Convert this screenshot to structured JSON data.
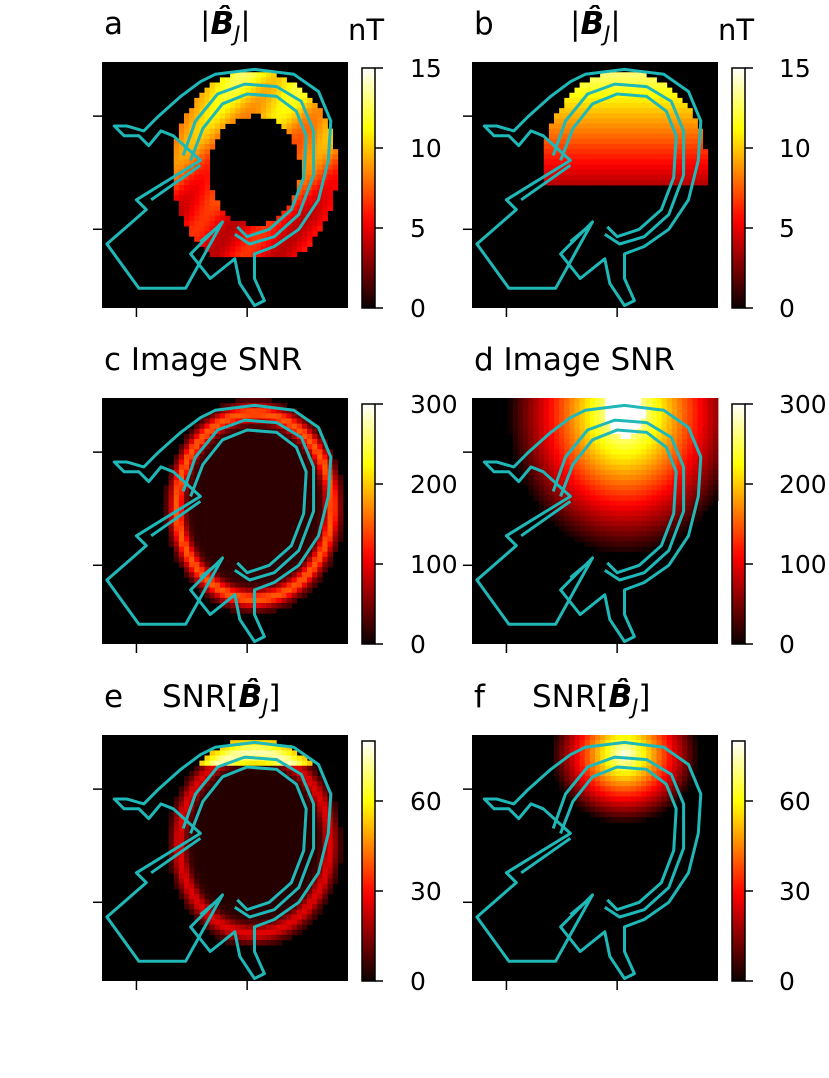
{
  "figure": {
    "colors": {
      "outline": "#1fb8b8",
      "background": "#000000"
    },
    "colormap": "hot"
  },
  "chart_data": [
    {
      "type": "heatmap",
      "panel_letter": "a",
      "title": "|B̂J|",
      "title_parts": {
        "open": "|",
        "symbol": "B̂",
        "subscript": "J",
        "close": "|"
      },
      "colorbar": {
        "label": "nT",
        "min": 0,
        "max": 15,
        "ticks": [
          0,
          5,
          10,
          15
        ],
        "tick_labels": [
          "0",
          "5",
          "10",
          "15"
        ]
      },
      "field": {
        "pattern": "ring",
        "peak": 13
      }
    },
    {
      "type": "heatmap",
      "panel_letter": "b",
      "title": "|B̂J|",
      "title_parts": {
        "open": "|",
        "symbol": "B̂",
        "subscript": "J",
        "close": "|"
      },
      "colorbar": {
        "label": "nT",
        "min": 0,
        "max": 15,
        "ticks": [
          0,
          5,
          10,
          15
        ],
        "tick_labels": [
          "0",
          "5",
          "10",
          "15"
        ]
      },
      "field": {
        "pattern": "top",
        "peak": 14
      }
    },
    {
      "type": "heatmap",
      "panel_letter": "c",
      "title": "Image SNR",
      "colorbar": {
        "label": "",
        "min": 0,
        "max": 300,
        "ticks": [
          0,
          100,
          200,
          300
        ],
        "tick_labels": [
          "0",
          "100",
          "200",
          "300"
        ]
      },
      "field": {
        "pattern": "edge",
        "peak": 150
      }
    },
    {
      "type": "heatmap",
      "panel_letter": "d",
      "title": "Image SNR",
      "colorbar": {
        "label": "",
        "min": 0,
        "max": 300,
        "ticks": [
          0,
          100,
          200,
          300
        ],
        "tick_labels": [
          "0",
          "100",
          "200",
          "300"
        ]
      },
      "field": {
        "pattern": "coil",
        "peak": 300
      }
    },
    {
      "type": "heatmap",
      "panel_letter": "e",
      "title": "SNR[B̂J]",
      "title_parts": {
        "prefix": "SNR",
        "open": "[",
        "symbol": "B̂",
        "subscript": "J",
        "close": "]"
      },
      "colorbar": {
        "label": "",
        "min": 0,
        "max": 80,
        "ticks": [
          0,
          30,
          60
        ],
        "tick_labels": [
          "0",
          "30",
          "60"
        ]
      },
      "field": {
        "pattern": "edgefaint",
        "peak": 70
      }
    },
    {
      "type": "heatmap",
      "panel_letter": "f",
      "title": "SNR[B̂J]",
      "title_parts": {
        "prefix": "SNR",
        "open": "[",
        "symbol": "B̂",
        "subscript": "J",
        "close": "]"
      },
      "colorbar": {
        "label": "",
        "min": 0,
        "max": 80,
        "ticks": [
          0,
          30,
          60
        ],
        "tick_labels": [
          "0",
          "30",
          "60"
        ]
      },
      "field": {
        "pattern": "coilfaint",
        "peak": 80
      }
    }
  ]
}
